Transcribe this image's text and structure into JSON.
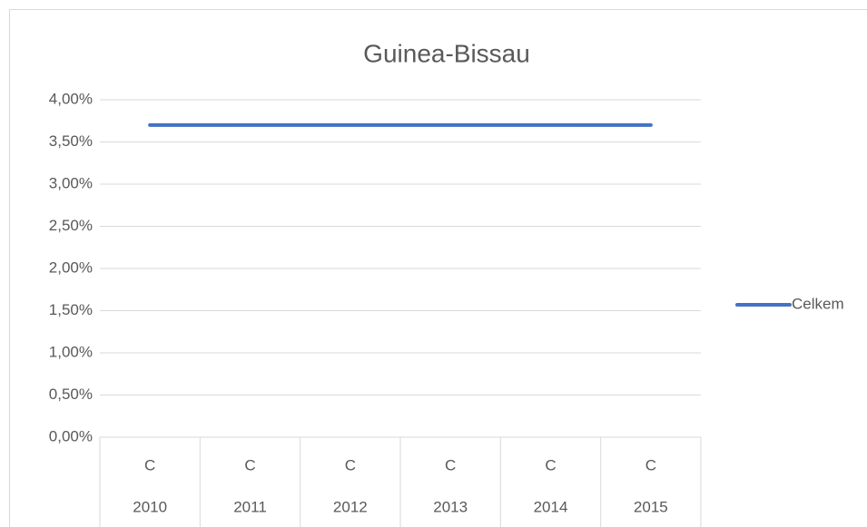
{
  "chart_data": {
    "type": "line",
    "title": "Guinea-Bissau",
    "categories": [
      "2010",
      "2011",
      "2012",
      "2013",
      "2014",
      "2015"
    ],
    "sublabels": [
      "C",
      "C",
      "C",
      "C",
      "C",
      "C"
    ],
    "series": [
      {
        "name": "Celkem",
        "color": "#4472c4",
        "values": [
          3.7,
          3.7,
          3.7,
          3.7,
          3.7,
          3.7
        ]
      }
    ],
    "ylim": [
      0,
      4
    ],
    "yticks": [
      {
        "value": 0,
        "label": "0,00%"
      },
      {
        "value": 0.5,
        "label": "0,50%"
      },
      {
        "value": 1,
        "label": "1,00%"
      },
      {
        "value": 1.5,
        "label": "1,50%"
      },
      {
        "value": 2,
        "label": "2,00%"
      },
      {
        "value": 2.5,
        "label": "2,50%"
      },
      {
        "value": 3,
        "label": "3,00%"
      },
      {
        "value": 3.5,
        "label": "3,50%"
      },
      {
        "value": 4,
        "label": "4,00%"
      }
    ],
    "grid": true,
    "legend": "right"
  }
}
